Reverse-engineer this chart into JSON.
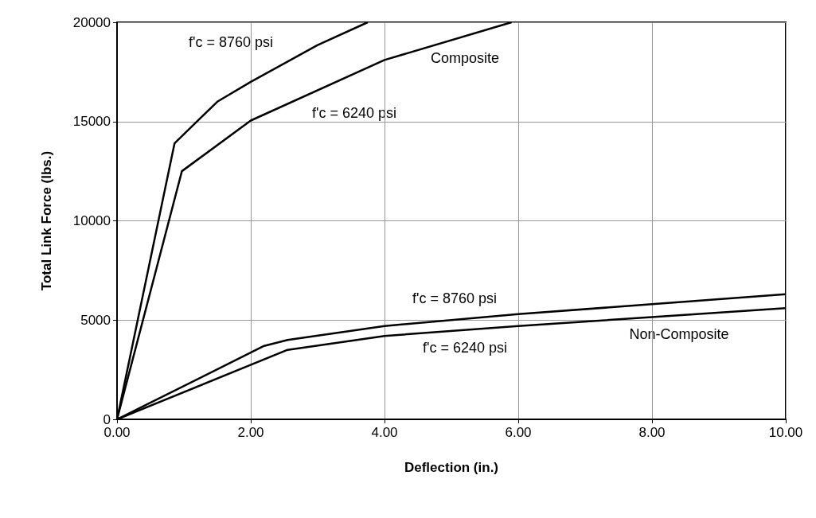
{
  "chart_data": {
    "type": "line",
    "xlabel": "Deflection (in.)",
    "ylabel": "Total Link Force (lbs.)",
    "xlim": [
      0,
      10
    ],
    "xticks": [
      {
        "value": 0,
        "label": "0.00"
      },
      {
        "value": 2,
        "label": "2.00"
      },
      {
        "value": 4,
        "label": "4.00"
      },
      {
        "value": 6,
        "label": "6.00"
      },
      {
        "value": 8,
        "label": "8.00"
      },
      {
        "value": 10,
        "label": "10.00"
      }
    ],
    "ylim": [
      0,
      20000
    ],
    "yticks": [
      0,
      5000,
      10000,
      15000,
      20000
    ],
    "grid": true,
    "marker": "none",
    "line_style": "solid",
    "series": [
      {
        "color": "#000000",
        "x": [
          0,
          0.86,
          1.5,
          2,
          3,
          3.75
        ],
        "values": [
          0,
          13900,
          16000,
          17000,
          18850,
          20000
        ]
      },
      {
        "color": "#000000",
        "x": [
          0,
          0.97,
          2,
          4,
          5.9
        ],
        "values": [
          0,
          12500,
          15050,
          18100,
          20000
        ]
      },
      {
        "color": "#000000",
        "x": [
          0,
          2.2,
          2.55,
          4,
          6,
          8,
          10
        ],
        "values": [
          0,
          3700,
          4000,
          4700,
          5300,
          5800,
          6300
        ]
      },
      {
        "color": "#000000",
        "x": [
          0,
          2.55,
          4,
          6,
          8,
          10
        ],
        "values": [
          0,
          3500,
          4200,
          4700,
          5150,
          5600
        ]
      }
    ],
    "annotations": [
      "f'c = 8760 psi",
      "Composite",
      "f'c = 6240 psi",
      "f'c = 8760 psi",
      "Non-Composite",
      "f'c = 6240 psi"
    ]
  }
}
